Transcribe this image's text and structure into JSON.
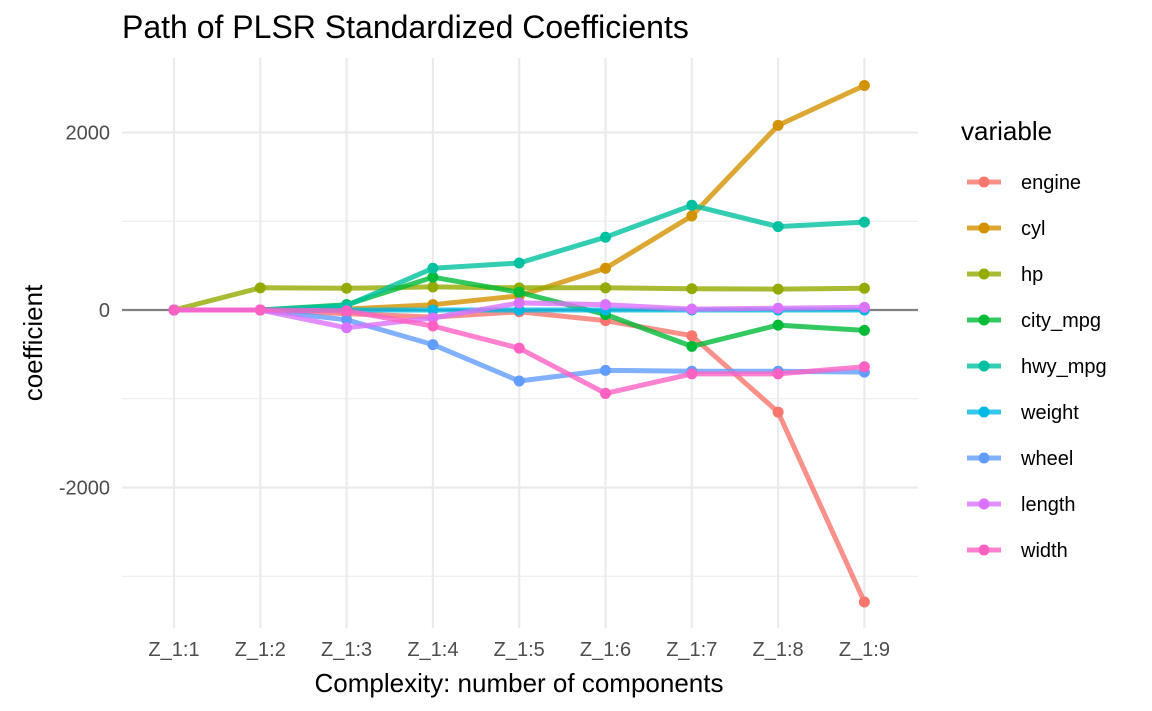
{
  "chart_data": {
    "type": "line",
    "title": "Path of PLSR Standardized Coefficients",
    "xlabel": "Complexity: number of components",
    "ylabel": "coefficient",
    "categories": [
      "Z_1:1",
      "Z_1:2",
      "Z_1:3",
      "Z_1:4",
      "Z_1:5",
      "Z_1:6",
      "Z_1:7",
      "Z_1:8",
      "Z_1:9"
    ],
    "ylim": [
      -3550,
      2800
    ],
    "yticks": [
      -2000,
      0,
      2000
    ],
    "grid": true,
    "zero_line": true,
    "legend": {
      "title": "variable",
      "position": "right"
    },
    "series": [
      {
        "name": "engine",
        "color": "#F8766D",
        "values": [
          0,
          0,
          -40,
          -80,
          -20,
          -120,
          -290,
          -1150,
          -3290
        ]
      },
      {
        "name": "cyl",
        "color": "#D39200",
        "values": [
          0,
          0,
          10,
          60,
          160,
          470,
          1060,
          2080,
          2530
        ]
      },
      {
        "name": "hp",
        "color": "#93AA00",
        "values": [
          0,
          250,
          245,
          260,
          250,
          250,
          240,
          235,
          245
        ]
      },
      {
        "name": "city_mpg",
        "color": "#00BA38",
        "values": [
          0,
          0,
          60,
          370,
          200,
          -50,
          -410,
          -170,
          -230
        ]
      },
      {
        "name": "hwy_mpg",
        "color": "#00C19F",
        "values": [
          0,
          0,
          50,
          470,
          530,
          820,
          1180,
          940,
          990
        ]
      },
      {
        "name": "weight",
        "color": "#00B9E3",
        "values": [
          0,
          0,
          0,
          0,
          0,
          0,
          0,
          0,
          0
        ]
      },
      {
        "name": "wheel",
        "color": "#619CFF",
        "values": [
          0,
          0,
          -110,
          -390,
          -800,
          -680,
          -690,
          -690,
          -700
        ]
      },
      {
        "name": "length",
        "color": "#DB72FB",
        "values": [
          0,
          0,
          -200,
          -90,
          80,
          60,
          10,
          20,
          30
        ]
      },
      {
        "name": "width",
        "color": "#FF61C3",
        "values": [
          0,
          0,
          -10,
          -180,
          -430,
          -940,
          -720,
          -720,
          -640
        ]
      }
    ]
  }
}
